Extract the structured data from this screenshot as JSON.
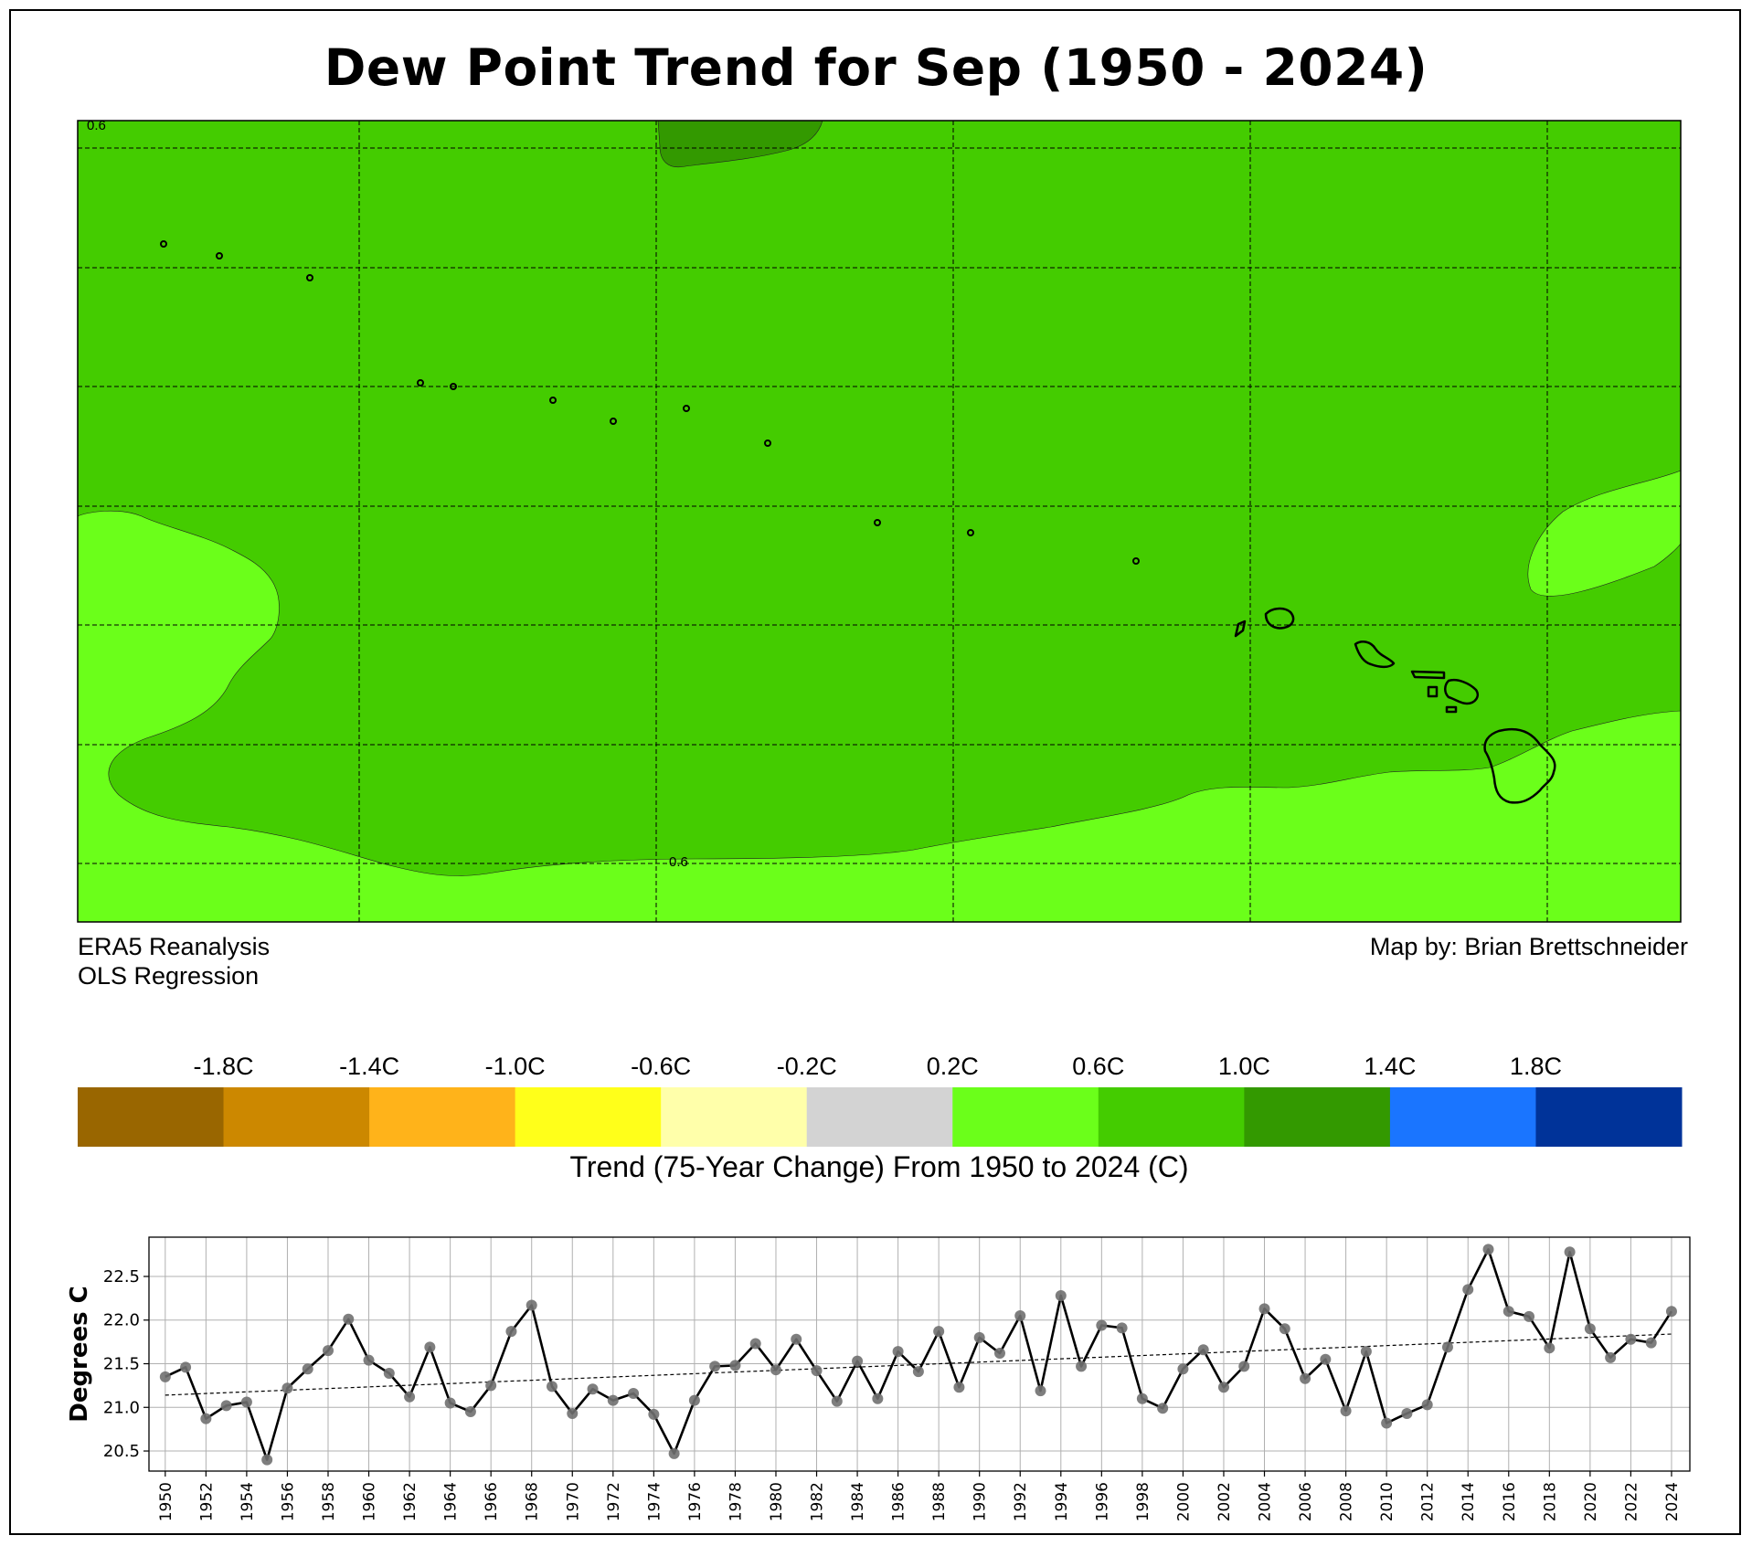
{
  "title": "Dew Point Trend for Sep (1950 - 2024)",
  "map": {
    "contour_labels": [
      "0.6",
      "0.6"
    ],
    "colors": {
      "zone_0_2_to_0_6": "#6bff1a",
      "zone_0_6_to_1_0": "#44cc00",
      "zone_1_0_to_1_4": "#339900"
    }
  },
  "notes": {
    "source": "ERA5 Reanalysis",
    "method": "OLS Regression",
    "credit": "Map by: Brian Brettschneider"
  },
  "colorbar": {
    "ticks": [
      "-1.8C",
      "-1.4C",
      "-1.0C",
      "-0.6C",
      "-0.2C",
      "0.2C",
      "0.6C",
      "1.0C",
      "1.4C",
      "1.8C"
    ],
    "colors": [
      "#996600",
      "#cc8800",
      "#ffb31a",
      "#ffff1a",
      "#ffffaa",
      "#d3d3d3",
      "#6bff1a",
      "#44cc00",
      "#339900",
      "#1a75ff",
      "#003399"
    ],
    "label": "Trend (75-Year Change) From 1950 to 2024 (C)"
  },
  "chart_data": {
    "type": "line",
    "ylabel": "Degrees C",
    "xlabel": "",
    "xlim": [
      1949.2,
      2024.9
    ],
    "ylim": [
      20.27,
      22.95
    ],
    "yticks": [
      20.5,
      21.0,
      21.5,
      22.0,
      22.5
    ],
    "xticks": [
      1950,
      1952,
      1954,
      1956,
      1958,
      1960,
      1962,
      1964,
      1966,
      1968,
      1970,
      1972,
      1974,
      1976,
      1978,
      1980,
      1982,
      1984,
      1986,
      1988,
      1990,
      1992,
      1994,
      1996,
      1998,
      2000,
      2002,
      2004,
      2006,
      2008,
      2010,
      2012,
      2014,
      2016,
      2018,
      2020,
      2022,
      2024
    ],
    "grid": true,
    "series": [
      {
        "x": [
          1950,
          1951,
          1952,
          1953,
          1954,
          1955,
          1956,
          1957,
          1958,
          1959,
          1960,
          1961,
          1962,
          1963,
          1964,
          1965,
          1966,
          1967,
          1968,
          1969,
          1970,
          1971,
          1972,
          1973,
          1974,
          1975,
          1976,
          1977,
          1978,
          1979,
          1980,
          1981,
          1982,
          1983,
          1984,
          1985,
          1986,
          1987,
          1988,
          1989,
          1990,
          1991,
          1992,
          1993,
          1994,
          1995,
          1996,
          1997,
          1998,
          1999,
          2000,
          2001,
          2002,
          2003,
          2004,
          2005,
          2006,
          2007,
          2008,
          2009,
          2010,
          2011,
          2012,
          2013,
          2014,
          2015,
          2016,
          2017,
          2018,
          2019,
          2020,
          2021,
          2022,
          2023,
          2024
        ],
        "values": [
          21.35,
          21.46,
          20.87,
          21.02,
          21.06,
          20.4,
          21.22,
          21.44,
          21.65,
          22.01,
          21.54,
          21.39,
          21.12,
          21.69,
          21.05,
          20.95,
          21.25,
          21.87,
          22.17,
          21.24,
          20.93,
          21.21,
          21.08,
          21.16,
          20.92,
          20.47,
          21.08,
          21.47,
          21.48,
          21.73,
          21.43,
          21.78,
          21.42,
          21.07,
          21.53,
          21.1,
          21.64,
          21.41,
          21.87,
          21.23,
          21.8,
          21.62,
          22.05,
          21.19,
          22.28,
          21.47,
          21.94,
          21.91,
          21.1,
          20.99,
          21.44,
          21.66,
          21.23,
          21.47,
          22.13,
          21.9,
          21.33,
          21.55,
          20.96,
          21.64,
          20.82,
          20.93,
          21.03,
          21.69,
          22.35,
          22.81,
          22.1,
          22.04,
          21.68,
          22.78,
          21.9,
          21.57,
          21.78,
          21.74,
          22.1
        ]
      }
    ],
    "trend": {
      "x": [
        1950,
        2024
      ],
      "y": [
        21.14,
        21.84
      ],
      "style": "dashed"
    }
  }
}
